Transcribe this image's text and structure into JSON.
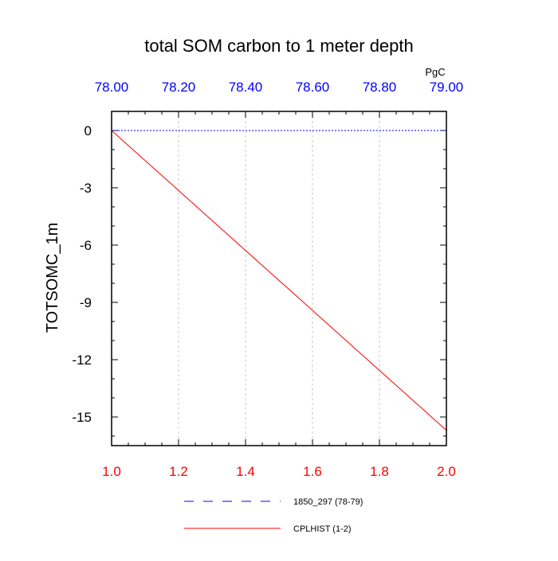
{
  "chart_data": {
    "type": "line",
    "title": "total SOM carbon to 1 meter depth",
    "ylabel": "TOTSOMC_1m",
    "top_axis_unit": "PgC",
    "bottom_axis": {
      "range": [
        1.0,
        2.0
      ],
      "tick_labels": [
        "1.0",
        "1.2",
        "1.4",
        "1.6",
        "1.8",
        "2.0"
      ],
      "color": "#ff0000"
    },
    "top_axis": {
      "range": [
        78.0,
        79.0
      ],
      "tick_labels": [
        "78.00",
        "78.20",
        "78.40",
        "78.60",
        "78.80",
        "79.00"
      ],
      "color": "#0000ff"
    },
    "y_axis": {
      "range": [
        -16.5,
        1.0
      ],
      "tick_labels": [
        "0",
        "-3",
        "-6",
        "-9",
        "-12",
        "-15"
      ]
    },
    "grid": "vertical dashed",
    "legend_placement": "below",
    "series": [
      {
        "name": "1850_297 (78-79)",
        "axis": "top",
        "color": "#0000ff",
        "dash": "dashed",
        "x": [
          78.0,
          79.0
        ],
        "y": [
          0,
          0
        ]
      },
      {
        "name": "CPLHIST (1-2)",
        "axis": "bottom",
        "color": "#ff0000",
        "dash": "solid",
        "x": [
          1.0,
          2.0
        ],
        "y": [
          0,
          -15.7
        ]
      }
    ]
  }
}
